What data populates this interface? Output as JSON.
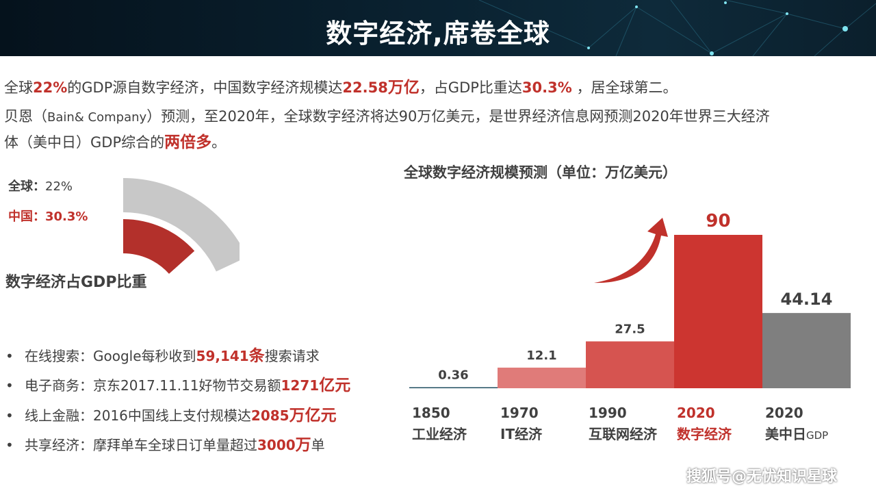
{
  "header": {
    "title": "数字经济,席卷全球"
  },
  "intro": {
    "line1": [
      "全球",
      "22%",
      "的GDP源自数字经济，中国数字经济规模达",
      "22.58",
      "万亿",
      "，占GDP比重达",
      "30.3%",
      " ，居全球第二。"
    ],
    "line2": [
      "贝恩（",
      "Bain& Company",
      "）预测，至2020年，全球数字经济将达90万亿美元，是世界经济信息网预测2020年世界三大经济"
    ],
    "line3": [
      "体（美中日）GDP综合的",
      "两倍多",
      "。"
    ]
  },
  "donut": {
    "global_label": "全球：",
    "global_value": "22%",
    "china_label": "中国：",
    "china_value": "30.3%",
    "title": "数字经济占GDP比重",
    "global_pct": 22,
    "china_pct": 30.3,
    "colors": {
      "global": "#c8c8c8",
      "china": "#b3302b"
    }
  },
  "bullets": [
    {
      "dot": "•",
      "parts": [
        "在线搜索：Google每秒收到",
        "59,141",
        "条",
        "搜索请求"
      ]
    },
    {
      "dot": "•",
      "parts": [
        "电子商务：京东2017.11.11好物节交易额",
        "1271",
        "亿元",
        ""
      ]
    },
    {
      "dot": "•",
      "parts": [
        "线上金融：2016中国线上支付规模达",
        "2085",
        "万亿元",
        ""
      ]
    },
    {
      "dot": "•",
      "parts": [
        "共享经济：摩拜单车全球日订单量超过",
        "3000",
        "万",
        "单"
      ]
    }
  ],
  "chart_data": {
    "type": "bar",
    "title": "全球数字经济规模预测（单位：万亿美元）",
    "categories": [
      "1850",
      "1970",
      "1990",
      "2020",
      "2020"
    ],
    "sublabels": [
      "工业经济",
      "IT经济",
      "互联网经济",
      "数字经济",
      "美中日"
    ],
    "sublabel_suffix": [
      "",
      "",
      "",
      "",
      "GDP"
    ],
    "values": [
      0.36,
      12.1,
      27.5,
      90,
      44.14
    ],
    "value_labels": [
      "0.36",
      "12.1",
      "27.5",
      "90",
      "44.14"
    ],
    "colors": [
      "#1f4e60",
      "#e07b79",
      "#d65450",
      "#cc3530",
      "#7f7f7f"
    ],
    "highlight_index": 3,
    "highlight_color": "#c0312b",
    "ylim": [
      0,
      90
    ],
    "grid": false,
    "legend": "none"
  },
  "watermark": "搜狐号@无忧知识星球"
}
